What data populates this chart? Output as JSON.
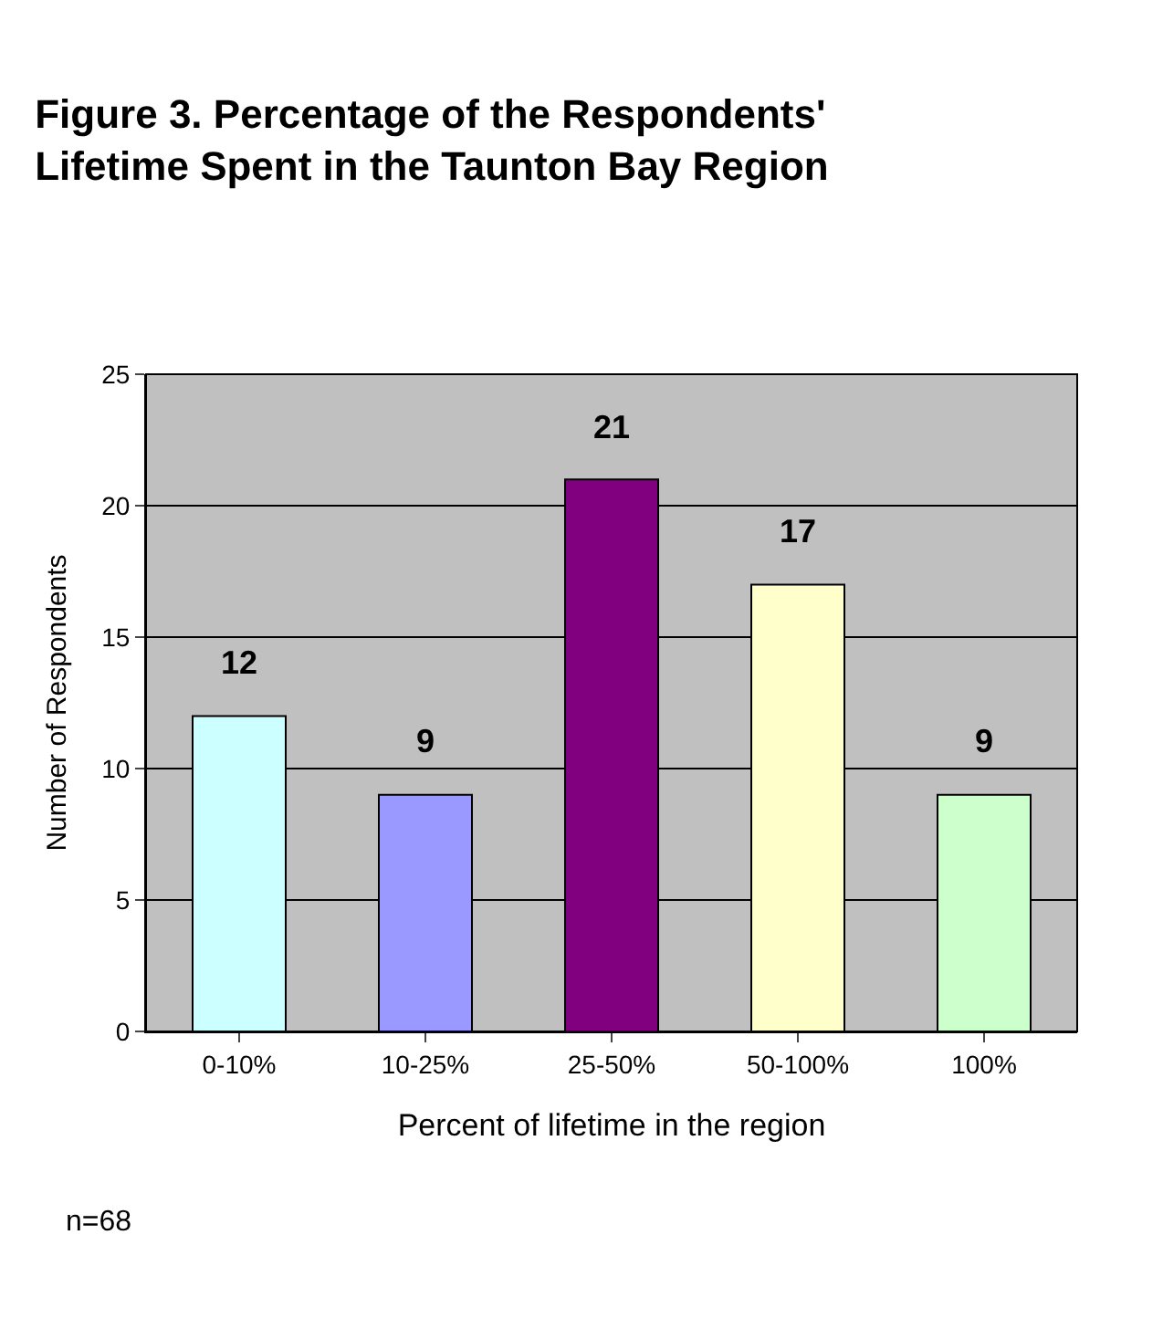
{
  "chart_data": {
    "type": "bar",
    "title": "Figure 3. Percentage of the Respondents'\nLifetime Spent in the Taunton Bay Region",
    "categories": [
      "0-10%",
      "10-25%",
      "25-50%",
      "50-100%",
      "100%"
    ],
    "values": [
      12,
      9,
      21,
      17,
      9
    ],
    "colors": [
      "#ccffff",
      "#9999ff",
      "#800080",
      "#ffffcc",
      "#ccffcc"
    ],
    "xlabel": "Percent of lifetime in the region",
    "ylabel": "Number of Respondents",
    "ylim": [
      0,
      25
    ],
    "yticks": [
      0,
      5,
      10,
      15,
      20,
      25
    ],
    "grid": "y",
    "data_labels": true,
    "legend": false,
    "annotations": [
      "n=68"
    ]
  }
}
